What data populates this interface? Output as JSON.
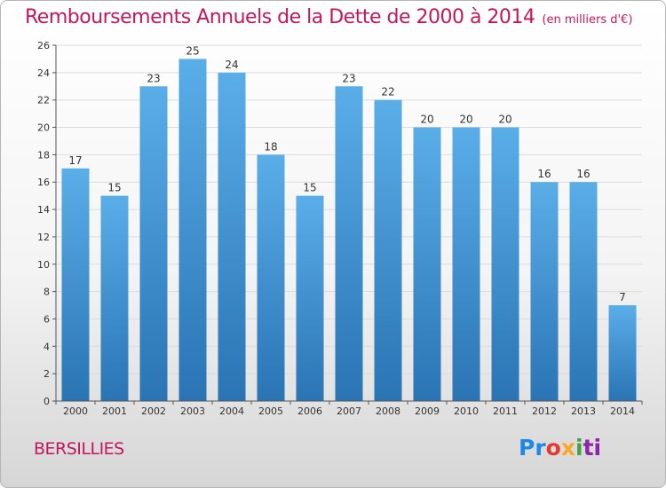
{
  "title": "Remboursements Annuels de la Dette de 2000 à 2014",
  "subtitle": "(en milliers d'€)",
  "town": "BERSILLIES",
  "logo": {
    "text": "Proxiti",
    "parts": [
      "Pr",
      "o",
      "x",
      "i",
      "ti"
    ]
  },
  "colors": {
    "title": "#c2185b",
    "bar_top": "#5aaee8",
    "bar_bottom": "#2a74b4"
  },
  "chart_data": {
    "type": "bar",
    "title": "Remboursements Annuels de la Dette de 2000 à 2014",
    "subtitle": "(en milliers d'€)",
    "categories": [
      "2000",
      "2001",
      "2002",
      "2003",
      "2004",
      "2005",
      "2006",
      "2007",
      "2008",
      "2009",
      "2010",
      "2011",
      "2012",
      "2013",
      "2014"
    ],
    "values": [
      17,
      15,
      23,
      25,
      24,
      18,
      15,
      23,
      22,
      20,
      20,
      20,
      16,
      16,
      7
    ],
    "xlabel": "",
    "ylabel": "",
    "ylim": [
      0,
      26
    ],
    "yticks": [
      0,
      2,
      4,
      6,
      8,
      10,
      12,
      14,
      16,
      18,
      20,
      22,
      24,
      26
    ],
    "grid": true
  }
}
